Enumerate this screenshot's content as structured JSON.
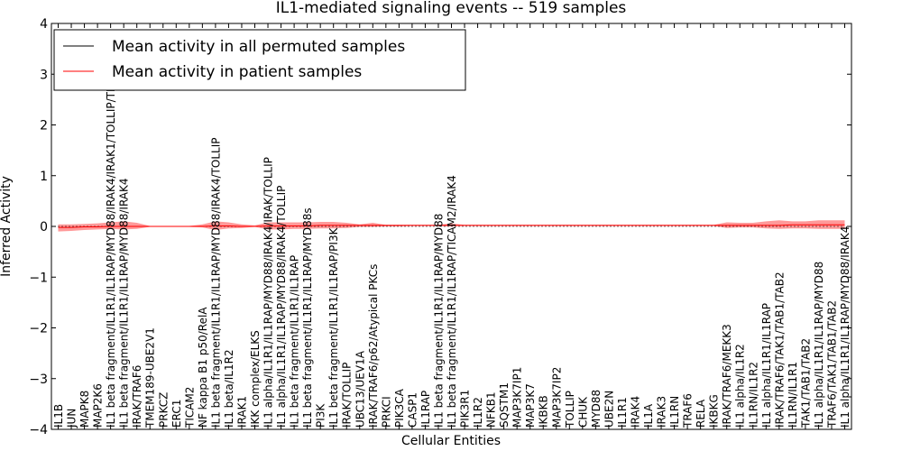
{
  "chart_data": {
    "type": "line",
    "title": "IL1-mediated signaling events -- 519 samples",
    "xlabel": "Cellular Entities",
    "ylabel": "Inferred Activity",
    "ylim": [
      -4,
      4
    ],
    "yticks": [
      -4,
      -3,
      -2,
      -1,
      0,
      1,
      2,
      3,
      4
    ],
    "ytick_labels": [
      "−4",
      "−3",
      "−2",
      "−1",
      "0",
      "1",
      "2",
      "3",
      "4"
    ],
    "legend": {
      "placement": "top-left",
      "entries": [
        {
          "label": "Mean activity in all permuted samples",
          "color": "#000000"
        },
        {
          "label": "Mean activity in patient samples",
          "color": "#ff0000"
        }
      ]
    },
    "categories": [
      "IL1B",
      "JUN",
      "MAPK8",
      "MAP2K6",
      "IL1 beta fragment/IL1R1/IL1RAP/MYD88/IRAK4/IRAK1/TOLLIP/TRAF6",
      "IL1 beta fragment/IL1R1/IL1RAP/MYD88/IRAK4",
      "IRAK/TRAF6",
      "TMEM189-UBE2V1",
      "PRKCZ",
      "ERC1",
      "TICAM2",
      "NF kappa B1 p50/RelA",
      "IL1 beta fragment/IL1R1/IL1RAP/MYD88/IRAK4/TOLLIP",
      "IL1 beta/IL1R2",
      "IRAK1",
      "IKK complex/ELKS",
      "IL1 alpha/IL1R1/IL1RAP/MYD88/IRAK4/IRAK/TOLLIP",
      "IL1 alpha/IL1R1/IL1RAP/MYD88/IRAK4/TOLLIP",
      "IL1 beta fragment/IL1R1/IL1RAP",
      "IL1 beta fragment/IL1R1/IL1RAP/MYD88s",
      "PI3K",
      "IL1 beta fragment/IL1R1/IL1RAP/PI3K",
      "IRAK/TOLLIP",
      "UBC13/UEV1A",
      "IRAK/TRAF6/p62/Atypical PKCs",
      "PRKCI",
      "PIK3CA",
      "CASP1",
      "IL1RAP",
      "IL1 beta fragment/IL1R1/IL1RAP/MYD88",
      "IL1 beta fragment/IL1R1/IL1RAP/TICAM2/IRAK4",
      "PIK3R1",
      "IL1R2",
      "NFKB1",
      "SQSTM1",
      "MAP3K7IP1",
      "MAP3K7",
      "IKBKB",
      "MAP3K7IP2",
      "TOLLIP",
      "CHUK",
      "MYD88",
      "UBE2N",
      "IL1R1",
      "IRAK4",
      "IL1A",
      "IRAK3",
      "IL1RN",
      "TRAF6",
      "RELA",
      "IKBKG",
      "IRAK/TRAF6/MEKK3",
      "IL1 alpha/IL1R2",
      "IL1RN/IL1R2",
      "IL1 alpha/IL1R1/IL1RAP",
      "IRAK/TRAF6/TAK1/TAB1/TAB2",
      "IL1RN/IL1R1",
      "TAK1/TAB1/TAB2",
      "IL1 alpha/IL1R1/IL1RAP/MYD88",
      "TRAF6/TAK1/TAB1/TAB2",
      "IL1 alpha/IL1R1/IL1RAP/MYD88/IRAK4"
    ],
    "series": [
      {
        "name": "Mean activity in all permuted samples",
        "color": "#000000",
        "style": "dotted",
        "values": [
          0,
          0,
          0,
          0,
          0,
          0,
          0,
          0,
          0,
          0,
          0,
          0,
          0,
          0,
          0,
          0,
          0,
          0,
          0,
          0,
          0,
          0,
          0,
          0,
          0,
          0,
          0,
          0,
          0,
          0,
          0,
          0,
          0,
          0,
          0,
          0,
          0,
          0,
          0,
          0,
          0,
          0,
          0,
          0,
          0,
          0,
          0,
          0,
          0,
          0,
          0,
          0,
          0,
          0,
          0,
          0,
          0,
          0,
          0,
          0,
          0
        ]
      },
      {
        "name": "Mean activity in patient samples",
        "color": "#ff0000",
        "style": "solid",
        "values": [
          -0.02,
          -0.02,
          -0.01,
          -0.01,
          0,
          0,
          0,
          0,
          0,
          0,
          0,
          0,
          0.01,
          0.01,
          0,
          0,
          0.01,
          0.01,
          0.01,
          0.01,
          0.02,
          0.02,
          0.02,
          0.02,
          0.02,
          0.02,
          0.02,
          0.02,
          0.02,
          0.02,
          0.02,
          0.02,
          0.02,
          0.02,
          0.02,
          0.02,
          0.02,
          0.02,
          0.02,
          0.02,
          0.02,
          0.02,
          0.02,
          0.02,
          0.02,
          0.02,
          0.02,
          0.02,
          0.02,
          0.02,
          0.02,
          0.02,
          0.02,
          0.02,
          0.02,
          0.02,
          0.03,
          0.03,
          0.03,
          0.03,
          0.03
        ],
        "band_lower": [
          -0.1,
          -0.09,
          -0.07,
          -0.06,
          -0.05,
          -0.06,
          -0.05,
          -0.01,
          0,
          0,
          -0.01,
          -0.02,
          -0.07,
          -0.04,
          -0.03,
          -0.01,
          -0.06,
          -0.06,
          -0.05,
          -0.05,
          -0.04,
          -0.04,
          -0.03,
          -0.01,
          -0.01,
          0,
          0,
          0.01,
          0.01,
          0.01,
          0,
          0.01,
          0.01,
          0.01,
          0.01,
          0.01,
          0.01,
          0.01,
          0.01,
          0.01,
          0.01,
          0.01,
          0.01,
          0.01,
          0.01,
          0.01,
          0.01,
          0.01,
          0.01,
          0.01,
          0.01,
          -0.03,
          -0.02,
          -0.02,
          -0.04,
          -0.05,
          -0.04,
          -0.04,
          -0.05,
          -0.05,
          -0.05
        ],
        "band_upper": [
          0.04,
          0.04,
          0.05,
          0.06,
          0.08,
          0.1,
          0.07,
          0.01,
          0.01,
          0.01,
          0.01,
          0.04,
          0.1,
          0.08,
          0.04,
          0.02,
          0.08,
          0.08,
          0.08,
          0.08,
          0.09,
          0.09,
          0.07,
          0.04,
          0.07,
          0.03,
          0.03,
          0.03,
          0.03,
          0.03,
          0.06,
          0.03,
          0.03,
          0.03,
          0.03,
          0.03,
          0.03,
          0.03,
          0.03,
          0.03,
          0.03,
          0.03,
          0.03,
          0.03,
          0.03,
          0.03,
          0.03,
          0.03,
          0.03,
          0.03,
          0.03,
          0.08,
          0.07,
          0.07,
          0.1,
          0.12,
          0.1,
          0.1,
          0.12,
          0.12,
          0.12
        ]
      }
    ]
  }
}
